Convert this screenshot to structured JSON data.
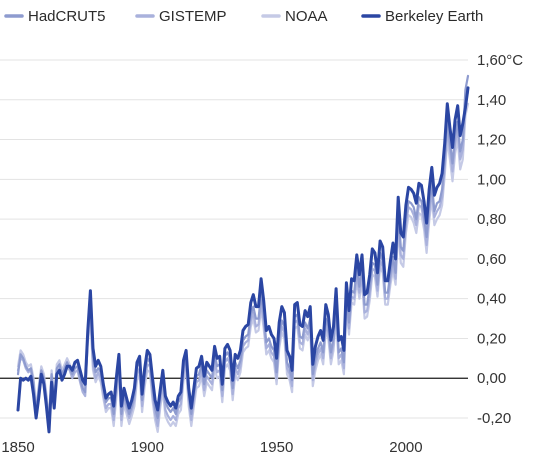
{
  "chart_data": {
    "type": "line",
    "legend_position": "top-left",
    "grid": true,
    "ylim": [
      -0.25,
      1.62
    ],
    "xlim": [
      1850,
      2024
    ],
    "y_ticks": [
      1.6,
      1.4,
      1.2,
      1.0,
      0.8,
      0.6,
      0.4,
      0.2,
      0.0,
      -0.2
    ],
    "y_tick_labels": [
      "1,60°C",
      "1,40",
      "1,20",
      "1,00",
      "0,80",
      "0,60",
      "0,40",
      "0,20",
      "0,00",
      "-0,20"
    ],
    "x_ticks": [
      1850,
      1900,
      1950,
      2000
    ],
    "x_tick_labels": [
      "1850",
      "1900",
      "1950",
      "2000"
    ],
    "x": [
      1850,
      1851,
      1852,
      1853,
      1854,
      1855,
      1856,
      1857,
      1858,
      1859,
      1860,
      1861,
      1862,
      1863,
      1864,
      1865,
      1866,
      1867,
      1868,
      1869,
      1870,
      1871,
      1872,
      1873,
      1874,
      1875,
      1876,
      1877,
      1878,
      1879,
      1880,
      1881,
      1882,
      1883,
      1884,
      1885,
      1886,
      1887,
      1888,
      1889,
      1890,
      1891,
      1892,
      1893,
      1894,
      1895,
      1896,
      1897,
      1898,
      1899,
      1900,
      1901,
      1902,
      1903,
      1904,
      1905,
      1906,
      1907,
      1908,
      1909,
      1910,
      1911,
      1912,
      1913,
      1914,
      1915,
      1916,
      1917,
      1918,
      1919,
      1920,
      1921,
      1922,
      1923,
      1924,
      1925,
      1926,
      1927,
      1928,
      1929,
      1930,
      1931,
      1932,
      1933,
      1934,
      1935,
      1936,
      1937,
      1938,
      1939,
      1940,
      1941,
      1942,
      1943,
      1944,
      1945,
      1946,
      1947,
      1948,
      1949,
      1950,
      1951,
      1952,
      1953,
      1954,
      1955,
      1956,
      1957,
      1958,
      1959,
      1960,
      1961,
      1962,
      1963,
      1964,
      1965,
      1966,
      1967,
      1968,
      1969,
      1970,
      1971,
      1972,
      1973,
      1974,
      1975,
      1976,
      1977,
      1978,
      1979,
      1980,
      1981,
      1982,
      1983,
      1984,
      1985,
      1986,
      1987,
      1988,
      1989,
      1990,
      1991,
      1992,
      1993,
      1994,
      1995,
      1996,
      1997,
      1998,
      1999,
      2000,
      2001,
      2002,
      2003,
      2004,
      2005,
      2006,
      2007,
      2008,
      2009,
      2010,
      2011,
      2012,
      2013,
      2014,
      2015,
      2016,
      2017,
      2018,
      2019,
      2020,
      2021,
      2022,
      2023,
      2024
    ],
    "series": [
      {
        "name": "HadCRUT5",
        "color": "#8e9bcf",
        "values": [
          0.02,
          0.12,
          0.1,
          0.06,
          0.04,
          0.05,
          -0.02,
          -0.17,
          -0.06,
          0.04,
          0.0,
          -0.1,
          -0.22,
          0.02,
          -0.12,
          0.05,
          0.07,
          0.02,
          0.05,
          0.08,
          0.05,
          0.02,
          0.05,
          0.06,
          0.0,
          -0.05,
          -0.07,
          0.22,
          0.38,
          0.1,
          0.03,
          0.05,
          0.03,
          -0.05,
          -0.12,
          -0.1,
          -0.1,
          -0.18,
          -0.04,
          0.09,
          -0.18,
          -0.08,
          -0.13,
          -0.18,
          -0.14,
          -0.08,
          0.06,
          0.08,
          -0.11,
          0.02,
          0.1,
          0.08,
          -0.05,
          -0.15,
          -0.2,
          -0.09,
          0.0,
          -0.12,
          -0.15,
          -0.17,
          -0.15,
          -0.18,
          -0.12,
          -0.1,
          0.05,
          0.1,
          -0.08,
          -0.18,
          -0.08,
          0.01,
          0.02,
          0.07,
          -0.03,
          0.04,
          0.02,
          0.0,
          0.12,
          0.06,
          0.07,
          -0.06,
          0.11,
          0.13,
          0.1,
          -0.05,
          0.08,
          0.05,
          0.09,
          0.19,
          0.21,
          0.22,
          0.32,
          0.36,
          0.3,
          0.3,
          0.42,
          0.32,
          0.18,
          0.2,
          0.16,
          0.14,
          0.03,
          0.21,
          0.29,
          0.26,
          0.08,
          0.05,
          -0.01,
          0.31,
          0.32,
          0.21,
          0.2,
          0.28,
          0.25,
          0.3,
          0.02,
          0.1,
          0.15,
          0.18,
          0.13,
          0.3,
          0.26,
          0.13,
          0.2,
          0.38,
          0.13,
          0.15,
          0.08,
          0.41,
          0.28,
          0.44,
          0.43,
          0.56,
          0.46,
          0.56,
          0.37,
          0.37,
          0.46,
          0.58,
          0.57,
          0.47,
          0.63,
          0.59,
          0.43,
          0.43,
          0.53,
          0.61,
          0.53,
          0.84,
          0.66,
          0.64,
          0.8,
          0.89,
          0.88,
          0.86,
          0.8,
          0.91,
          0.89,
          0.82,
          0.71,
          0.87,
          0.98,
          0.84,
          0.88,
          0.89,
          0.95,
          1.1,
          1.3,
          1.19,
          1.08,
          1.22,
          1.29,
          1.14,
          1.2,
          1.45,
          1.52
        ]
      },
      {
        "name": "GISTEMP",
        "color": "#a9b1dc",
        "values": [
          0.04,
          0.1,
          0.09,
          0.05,
          0.03,
          0.04,
          -0.04,
          -0.18,
          -0.08,
          0.03,
          -0.02,
          -0.12,
          -0.24,
          0.0,
          -0.14,
          0.03,
          0.05,
          0.0,
          0.03,
          0.06,
          0.04,
          0.0,
          0.03,
          0.04,
          -0.02,
          -0.07,
          -0.09,
          0.2,
          0.34,
          0.06,
          0.0,
          0.03,
          0.0,
          -0.08,
          -0.15,
          -0.13,
          -0.13,
          -0.21,
          -0.07,
          0.06,
          -0.21,
          -0.1,
          -0.15,
          -0.2,
          -0.16,
          -0.11,
          0.02,
          0.05,
          -0.14,
          -0.01,
          0.07,
          0.06,
          -0.08,
          -0.18,
          -0.24,
          -0.12,
          -0.03,
          -0.16,
          -0.19,
          -0.21,
          -0.19,
          -0.21,
          -0.15,
          -0.13,
          0.02,
          0.07,
          -0.11,
          -0.21,
          -0.11,
          -0.02,
          -0.01,
          0.04,
          -0.06,
          0.01,
          -0.01,
          -0.03,
          0.08,
          0.03,
          0.04,
          -0.09,
          0.08,
          0.1,
          0.07,
          -0.08,
          0.05,
          0.02,
          0.06,
          0.16,
          0.18,
          0.19,
          0.29,
          0.33,
          0.26,
          0.27,
          0.38,
          0.28,
          0.15,
          0.17,
          0.13,
          0.11,
          0.0,
          0.18,
          0.26,
          0.23,
          0.05,
          0.02,
          -0.04,
          0.28,
          0.29,
          0.18,
          0.17,
          0.25,
          0.22,
          0.27,
          -0.01,
          0.07,
          0.12,
          0.15,
          0.1,
          0.27,
          0.23,
          0.1,
          0.17,
          0.34,
          0.1,
          0.12,
          0.05,
          0.38,
          0.25,
          0.41,
          0.4,
          0.52,
          0.43,
          0.52,
          0.33,
          0.34,
          0.42,
          0.55,
          0.54,
          0.44,
          0.59,
          0.56,
          0.4,
          0.4,
          0.5,
          0.57,
          0.5,
          0.8,
          0.62,
          0.6,
          0.77,
          0.86,
          0.85,
          0.82,
          0.77,
          0.87,
          0.86,
          0.79,
          0.67,
          0.83,
          0.94,
          0.81,
          0.84,
          0.86,
          0.91,
          1.06,
          1.25,
          1.15,
          1.04,
          1.18,
          1.25,
          1.1,
          1.15,
          1.38,
          1.44
        ]
      },
      {
        "name": "NOAA",
        "color": "#c5cae6",
        "values": [
          0.06,
          0.14,
          0.12,
          0.08,
          0.06,
          0.07,
          0.0,
          -0.15,
          -0.04,
          0.06,
          0.02,
          -0.08,
          -0.2,
          0.04,
          -0.1,
          0.07,
          0.09,
          0.04,
          0.07,
          0.1,
          0.07,
          0.04,
          0.07,
          0.08,
          0.02,
          -0.03,
          -0.05,
          0.18,
          0.3,
          0.04,
          -0.02,
          0.01,
          -0.02,
          -0.1,
          -0.17,
          -0.15,
          -0.15,
          -0.24,
          -0.1,
          0.03,
          -0.24,
          -0.13,
          -0.18,
          -0.23,
          -0.19,
          -0.14,
          -0.01,
          0.02,
          -0.17,
          -0.04,
          0.04,
          0.03,
          -0.11,
          -0.21,
          -0.27,
          -0.15,
          -0.06,
          -0.19,
          -0.22,
          -0.24,
          -0.22,
          -0.24,
          -0.18,
          -0.16,
          -0.01,
          0.04,
          -0.14,
          -0.24,
          -0.14,
          -0.05,
          -0.04,
          0.01,
          -0.09,
          -0.02,
          -0.04,
          -0.06,
          0.05,
          0.0,
          0.01,
          -0.12,
          0.05,
          0.07,
          0.04,
          -0.11,
          0.02,
          -0.01,
          0.03,
          0.13,
          0.15,
          0.16,
          0.26,
          0.3,
          0.23,
          0.24,
          0.35,
          0.25,
          0.12,
          0.14,
          0.1,
          0.08,
          -0.03,
          0.15,
          0.23,
          0.2,
          0.02,
          -0.01,
          -0.07,
          0.25,
          0.26,
          0.15,
          0.14,
          0.22,
          0.19,
          0.24,
          -0.04,
          0.04,
          0.09,
          0.12,
          0.07,
          0.24,
          0.2,
          0.07,
          0.14,
          0.31,
          0.07,
          0.09,
          0.02,
          0.35,
          0.22,
          0.38,
          0.37,
          0.49,
          0.4,
          0.49,
          0.3,
          0.31,
          0.39,
          0.52,
          0.51,
          0.41,
          0.56,
          0.53,
          0.37,
          0.37,
          0.47,
          0.54,
          0.47,
          0.76,
          0.58,
          0.56,
          0.73,
          0.82,
          0.81,
          0.78,
          0.73,
          0.83,
          0.82,
          0.75,
          0.63,
          0.79,
          0.9,
          0.77,
          0.8,
          0.82,
          0.87,
          1.02,
          1.2,
          1.1,
          0.99,
          1.13,
          1.2,
          1.05,
          1.1,
          1.32,
          1.38
        ]
      },
      {
        "name": "Berkeley Earth",
        "color": "#2b46a3",
        "values": [
          -0.16,
          0.0,
          -0.01,
          0.0,
          -0.01,
          0.01,
          -0.08,
          -0.2,
          -0.1,
          0.02,
          -0.03,
          -0.14,
          -0.27,
          -0.02,
          -0.15,
          0.02,
          0.04,
          -0.01,
          0.02,
          0.06,
          0.06,
          0.04,
          0.08,
          0.09,
          0.04,
          -0.01,
          -0.03,
          0.24,
          0.44,
          0.15,
          0.06,
          0.09,
          0.06,
          -0.03,
          -0.1,
          -0.08,
          -0.07,
          -0.14,
          0.0,
          0.12,
          -0.14,
          -0.05,
          -0.1,
          -0.15,
          -0.11,
          -0.05,
          0.08,
          0.11,
          -0.08,
          0.05,
          0.14,
          0.12,
          0.0,
          -0.11,
          -0.16,
          -0.06,
          0.04,
          -0.09,
          -0.12,
          -0.14,
          -0.12,
          -0.15,
          -0.09,
          -0.07,
          0.09,
          0.14,
          -0.05,
          -0.15,
          -0.05,
          0.05,
          0.06,
          0.11,
          0.01,
          0.08,
          0.06,
          0.04,
          0.16,
          0.1,
          0.11,
          -0.03,
          0.15,
          0.17,
          0.14,
          -0.01,
          0.12,
          0.1,
          0.14,
          0.24,
          0.26,
          0.27,
          0.38,
          0.42,
          0.36,
          0.36,
          0.5,
          0.39,
          0.24,
          0.26,
          0.22,
          0.2,
          0.1,
          0.28,
          0.36,
          0.33,
          0.14,
          0.11,
          0.04,
          0.37,
          0.38,
          0.27,
          0.26,
          0.34,
          0.31,
          0.36,
          0.07,
          0.16,
          0.21,
          0.24,
          0.19,
          0.37,
          0.32,
          0.19,
          0.26,
          0.45,
          0.19,
          0.21,
          0.14,
          0.48,
          0.34,
          0.5,
          0.49,
          0.62,
          0.52,
          0.62,
          0.42,
          0.43,
          0.52,
          0.65,
          0.63,
          0.53,
          0.69,
          0.66,
          0.49,
          0.49,
          0.59,
          0.68,
          0.6,
          0.91,
          0.73,
          0.71,
          0.87,
          0.96,
          0.95,
          0.93,
          0.88,
          0.98,
          0.97,
          0.89,
          0.78,
          0.95,
          1.06,
          0.92,
          0.96,
          0.98,
          1.03,
          1.18,
          1.38,
          1.26,
          1.16,
          1.3,
          1.37,
          1.22,
          1.28,
          1.36,
          1.46
        ]
      }
    ]
  }
}
